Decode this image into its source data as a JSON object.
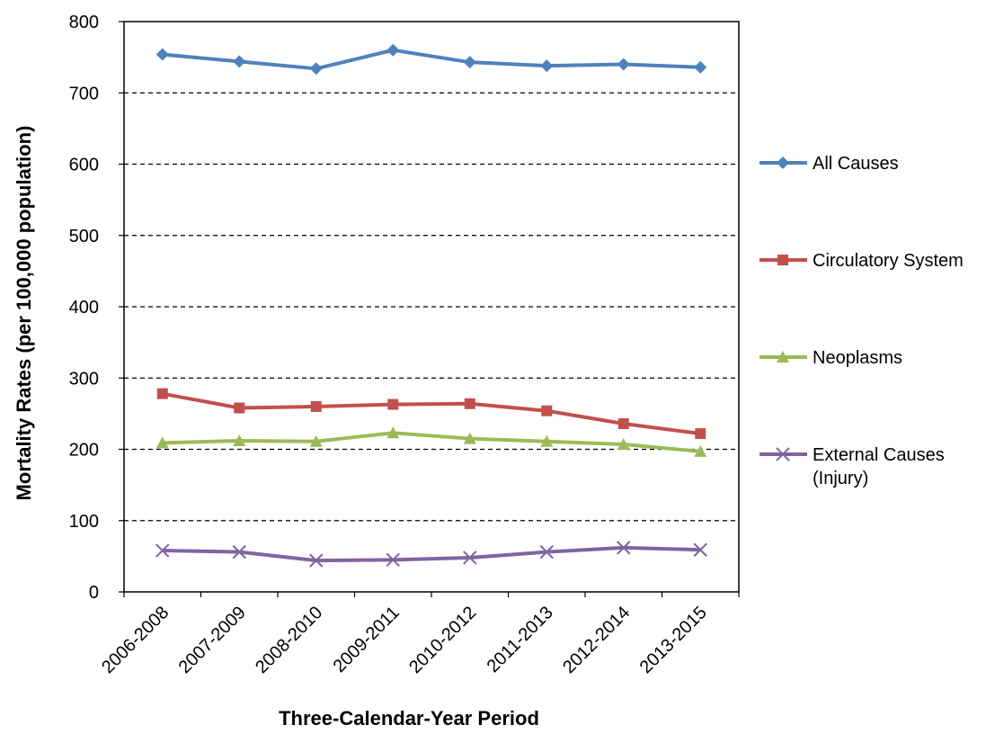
{
  "chart_data": {
    "type": "line",
    "title": "",
    "xlabel": "Three-Calendar-Year Period",
    "ylabel": "Mortality Rates (per 100,000 population)",
    "ylim": [
      0,
      800
    ],
    "yticks": [
      0,
      100,
      200,
      300,
      400,
      500,
      600,
      700,
      800
    ],
    "grid": "horizontal-dashed",
    "legend_position": "right",
    "categories": [
      "2006-2008",
      "2007-2009",
      "2008-2010",
      "2009-2011",
      "2010-2012",
      "2011-2013",
      "2012-2014",
      "2013-2015"
    ],
    "series": [
      {
        "name": "All Causes",
        "label_lines": [
          "All Causes"
        ],
        "color": "#4F81BD",
        "marker": "diamond",
        "values": [
          754,
          744,
          734,
          760,
          743,
          738,
          740,
          736
        ]
      },
      {
        "name": "Circulatory System",
        "label_lines": [
          "Circulatory System"
        ],
        "color": "#C0504D",
        "marker": "square",
        "values": [
          278,
          258,
          260,
          263,
          264,
          254,
          236,
          222
        ]
      },
      {
        "name": "Neoplasms",
        "label_lines": [
          "Neoplasms"
        ],
        "color": "#9BBB59",
        "marker": "triangle",
        "values": [
          209,
          212,
          211,
          223,
          215,
          211,
          207,
          197
        ]
      },
      {
        "name": "External Causes (Injury)",
        "label_lines": [
          "External Causes",
          "(Injury)"
        ],
        "color": "#8064A2",
        "marker": "x",
        "values": [
          58,
          56,
          44,
          45,
          48,
          56,
          62,
          59
        ]
      }
    ]
  }
}
